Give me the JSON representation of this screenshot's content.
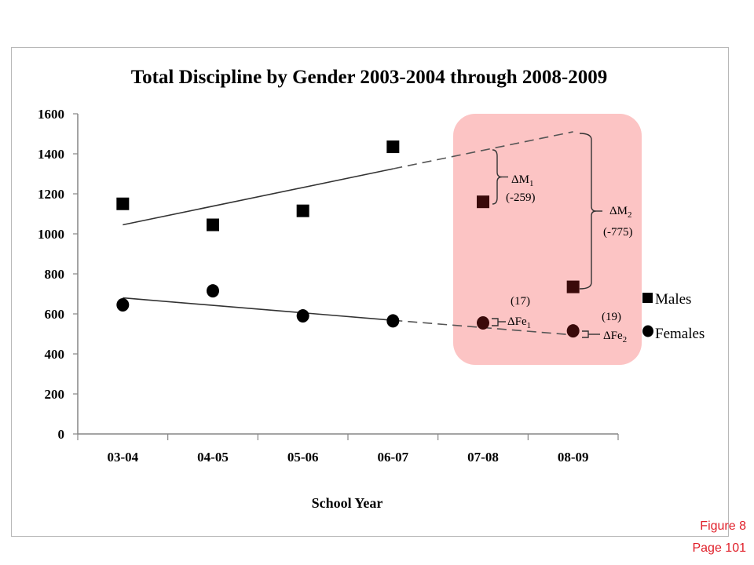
{
  "chart_data": {
    "type": "scatter",
    "title": "Total Discipline by Gender 2003-2004 through 2008-2009",
    "xlabel": "School Year",
    "ylabel": "",
    "categories": [
      "03-04",
      "04-05",
      "05-06",
      "06-07",
      "07-08",
      "08-09"
    ],
    "ylim": [
      0,
      1600
    ],
    "yticks": [
      0,
      200,
      400,
      600,
      800,
      1000,
      1200,
      1400,
      1600
    ],
    "legend_position": "right",
    "grid": false,
    "series": [
      {
        "name": "Males",
        "marker": "square",
        "values": [
          1150,
          1045,
          1115,
          1435,
          1160,
          735
        ],
        "trend": {
          "start": [
            0,
            1045
          ],
          "end_solid": [
            3,
            1325
          ],
          "end_dashed": [
            5,
            1510
          ]
        }
      },
      {
        "name": "Females",
        "marker": "circle",
        "values": [
          645,
          715,
          590,
          565,
          555,
          515
        ],
        "trend": {
          "start": [
            0,
            680
          ],
          "end_solid": [
            3,
            568
          ],
          "end_dashed": [
            5,
            495
          ]
        }
      }
    ],
    "annotations": {
      "dm1_label": "ΔM",
      "dm1_sub": "1",
      "dm1_value": "(-259)",
      "dm2_label": "ΔM",
      "dm2_sub": "2",
      "dm2_value": "(-775)",
      "dfe1_label": "ΔFe",
      "dfe1_sub": "1",
      "dfe1_value": "(17)",
      "dfe2_label": "ΔFe",
      "dfe2_sub": "2",
      "dfe2_value": "(19)"
    },
    "colors": {
      "highlight": "#fcc4c4",
      "marker": "#000000",
      "highlight_marker": "#3a0a0a",
      "axis": "#868686"
    }
  },
  "footer": {
    "figure": "Figure 8",
    "page": "Page 101"
  }
}
